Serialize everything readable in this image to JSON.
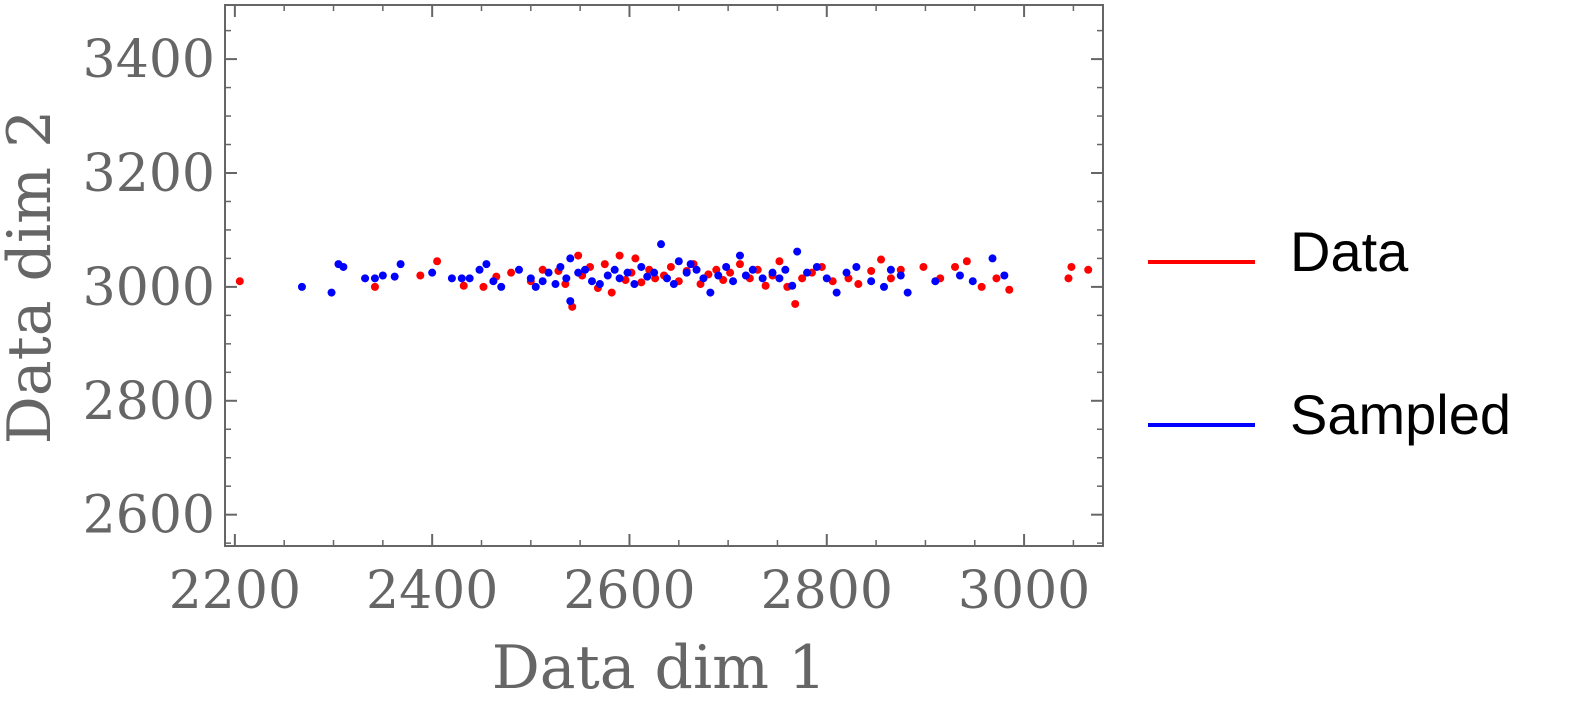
{
  "chart_data": {
    "type": "scatter",
    "title": "",
    "xlabel": "Data dim 1",
    "ylabel": "Data dim 2",
    "xlim": [
      2190,
      3080
    ],
    "ylim": [
      2545,
      3495
    ],
    "x_ticks": [
      2200,
      2400,
      2600,
      2800,
      3000
    ],
    "y_ticks": [
      2600,
      2800,
      3000,
      3200,
      3400
    ],
    "x_tick_labels": [
      "2200",
      "2400",
      "2600",
      "2800",
      "3000"
    ],
    "y_tick_labels": [
      "2600",
      "2800",
      "3000",
      "3200",
      "3400"
    ],
    "legend_position": "right",
    "series": [
      {
        "name": "Data",
        "color": "#ff0000",
        "points": [
          [
            2205,
            3010
          ],
          [
            2342,
            3000
          ],
          [
            2388,
            3020
          ],
          [
            2405,
            3045
          ],
          [
            2432,
            3002
          ],
          [
            2452,
            3000
          ],
          [
            2465,
            3018
          ],
          [
            2480,
            3025
          ],
          [
            2500,
            3010
          ],
          [
            2512,
            3030
          ],
          [
            2528,
            3028
          ],
          [
            2535,
            3005
          ],
          [
            2542,
            2965
          ],
          [
            2548,
            3055
          ],
          [
            2552,
            3020
          ],
          [
            2560,
            3035
          ],
          [
            2568,
            2998
          ],
          [
            2575,
            3040
          ],
          [
            2582,
            2990
          ],
          [
            2590,
            3055
          ],
          [
            2596,
            3012
          ],
          [
            2602,
            3025
          ],
          [
            2606,
            3050
          ],
          [
            2612,
            3008
          ],
          [
            2620,
            3030
          ],
          [
            2626,
            3015
          ],
          [
            2635,
            3020
          ],
          [
            2642,
            3035
          ],
          [
            2650,
            3010
          ],
          [
            2658,
            3028
          ],
          [
            2665,
            3040
          ],
          [
            2672,
            3005
          ],
          [
            2680,
            3022
          ],
          [
            2688,
            3030
          ],
          [
            2695,
            3012
          ],
          [
            2702,
            3025
          ],
          [
            2712,
            3040
          ],
          [
            2722,
            3015
          ],
          [
            2730,
            3030
          ],
          [
            2738,
            3002
          ],
          [
            2745,
            3020
          ],
          [
            2752,
            3045
          ],
          [
            2760,
            3000
          ],
          [
            2768,
            2970
          ],
          [
            2775,
            3015
          ],
          [
            2785,
            3025
          ],
          [
            2795,
            3035
          ],
          [
            2806,
            3010
          ],
          [
            2822,
            3015
          ],
          [
            2832,
            3005
          ],
          [
            2845,
            3028
          ],
          [
            2855,
            3048
          ],
          [
            2865,
            3015
          ],
          [
            2875,
            3030
          ],
          [
            2898,
            3035
          ],
          [
            2915,
            3015
          ],
          [
            2930,
            3035
          ],
          [
            2942,
            3045
          ],
          [
            2957,
            3000
          ],
          [
            2972,
            3015
          ],
          [
            2985,
            2995
          ],
          [
            3045,
            3015
          ],
          [
            3048,
            3035
          ],
          [
            3065,
            3030
          ]
        ]
      },
      {
        "name": "Sampled",
        "color": "#0000ff",
        "points": [
          [
            2268,
            3000
          ],
          [
            2298,
            2990
          ],
          [
            2305,
            3040
          ],
          [
            2310,
            3035
          ],
          [
            2332,
            3015
          ],
          [
            2342,
            3015
          ],
          [
            2350,
            3020
          ],
          [
            2362,
            3018
          ],
          [
            2368,
            3040
          ],
          [
            2400,
            3025
          ],
          [
            2420,
            3015
          ],
          [
            2430,
            3015
          ],
          [
            2438,
            3015
          ],
          [
            2448,
            3030
          ],
          [
            2455,
            3040
          ],
          [
            2462,
            3010
          ],
          [
            2470,
            3000
          ],
          [
            2488,
            3030
          ],
          [
            2500,
            3015
          ],
          [
            2505,
            3000
          ],
          [
            2512,
            3010
          ],
          [
            2518,
            3025
          ],
          [
            2525,
            3005
          ],
          [
            2530,
            3035
          ],
          [
            2536,
            3015
          ],
          [
            2540,
            3050
          ],
          [
            2540,
            2975
          ],
          [
            2548,
            3025
          ],
          [
            2555,
            3030
          ],
          [
            2562,
            3010
          ],
          [
            2570,
            3005
          ],
          [
            2578,
            3020
          ],
          [
            2585,
            3030
          ],
          [
            2590,
            3015
          ],
          [
            2598,
            3025
          ],
          [
            2605,
            3005
          ],
          [
            2612,
            3035
          ],
          [
            2618,
            3018
          ],
          [
            2625,
            3025
          ],
          [
            2632,
            3075
          ],
          [
            2638,
            3015
          ],
          [
            2645,
            3005
          ],
          [
            2650,
            3045
          ],
          [
            2658,
            3025
          ],
          [
            2662,
            3040
          ],
          [
            2668,
            3030
          ],
          [
            2675,
            3015
          ],
          [
            2682,
            2990
          ],
          [
            2690,
            3020
          ],
          [
            2698,
            3035
          ],
          [
            2705,
            3010
          ],
          [
            2712,
            3055
          ],
          [
            2718,
            3020
          ],
          [
            2725,
            3030
          ],
          [
            2735,
            3015
          ],
          [
            2745,
            3025
          ],
          [
            2752,
            3015
          ],
          [
            2758,
            3030
          ],
          [
            2765,
            3002
          ],
          [
            2770,
            3062
          ],
          [
            2780,
            3025
          ],
          [
            2790,
            3035
          ],
          [
            2800,
            3015
          ],
          [
            2810,
            2990
          ],
          [
            2820,
            3025
          ],
          [
            2830,
            3035
          ],
          [
            2845,
            3010
          ],
          [
            2858,
            3000
          ],
          [
            2865,
            3030
          ],
          [
            2875,
            3020
          ],
          [
            2882,
            2990
          ],
          [
            2910,
            3010
          ],
          [
            2935,
            3020
          ],
          [
            2948,
            3010
          ],
          [
            2968,
            3050
          ],
          [
            2980,
            3020
          ]
        ]
      }
    ]
  }
}
